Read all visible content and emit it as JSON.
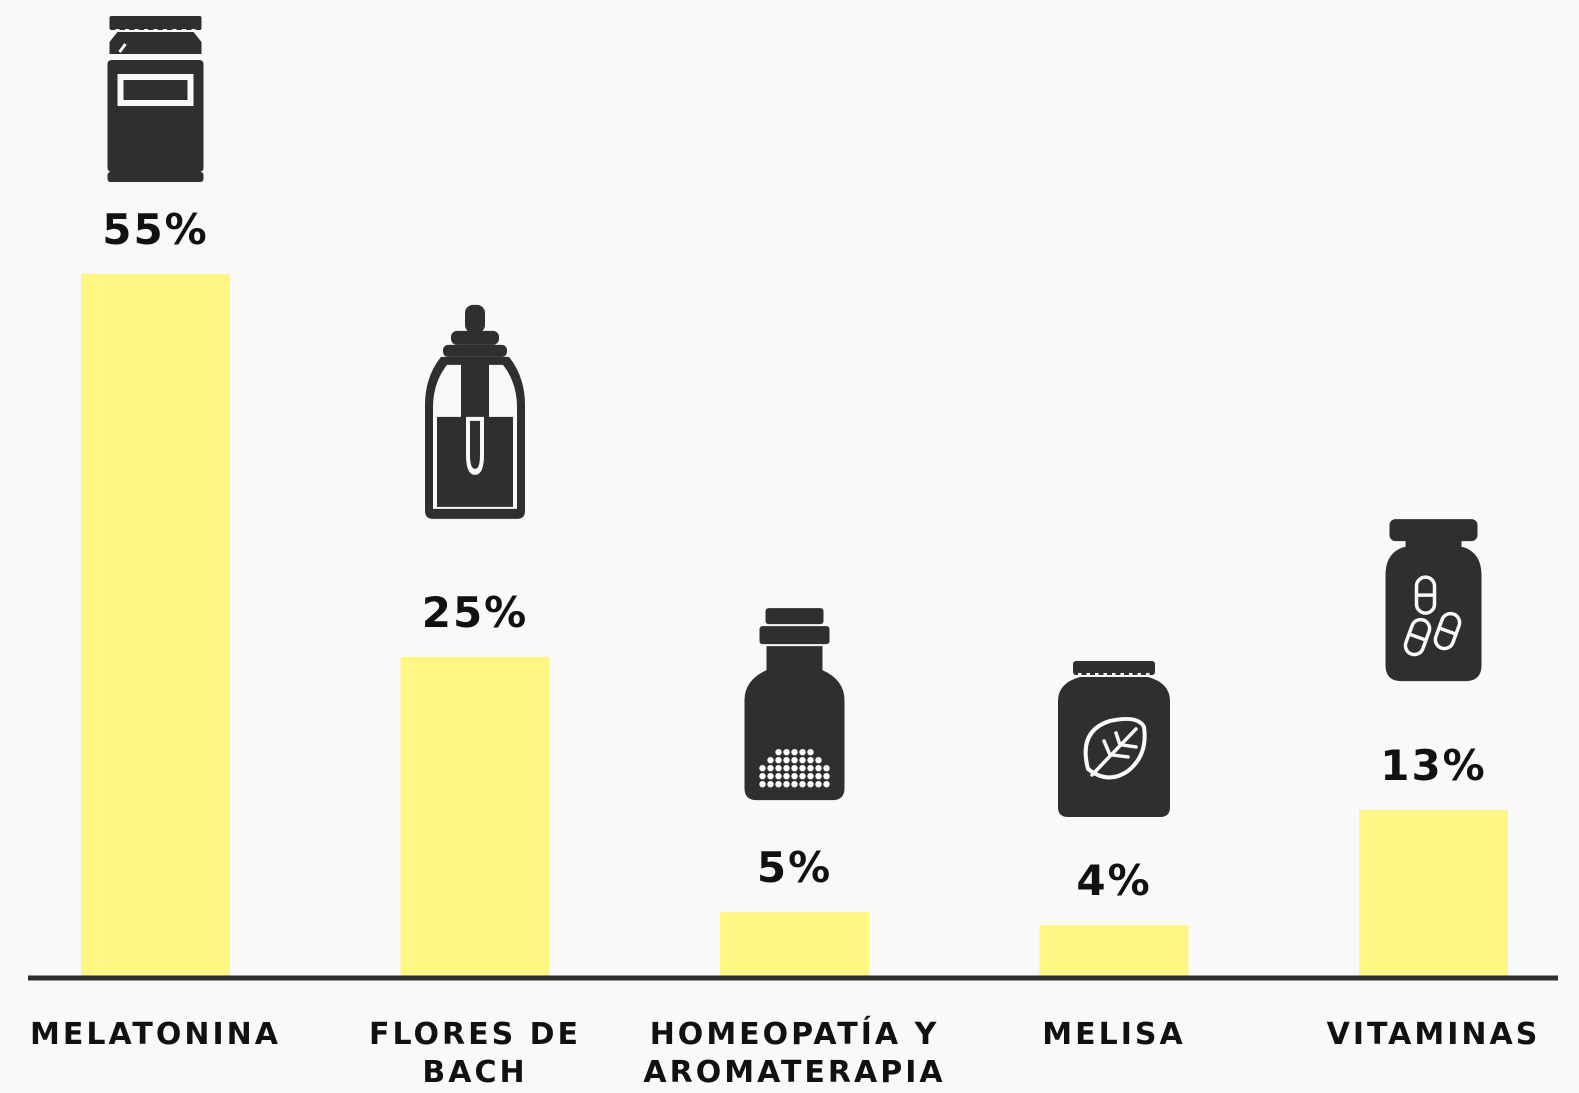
{
  "chart_data": {
    "type": "bar",
    "categories": [
      [
        "MELATONINA"
      ],
      [
        "FLORES DE",
        "BACH"
      ],
      [
        "HOMEOPATÍA Y",
        "AROMATERAPIA"
      ],
      [
        "MELISA"
      ],
      [
        "VITAMINAS"
      ]
    ],
    "values": [
      55,
      25,
      5,
      4,
      13
    ],
    "value_labels": [
      "55%",
      "25%",
      "5%",
      "4%",
      "13%"
    ],
    "icons": [
      "supplement-jar-icon",
      "dropper-bottle-icon",
      "globules-bottle-icon",
      "herb-leaf-jar-icon",
      "capsules-bottle-icon"
    ],
    "ylim": [
      0,
      55
    ],
    "grid": false,
    "colors": {
      "bar": "#fff684",
      "icon": "#2f2f31",
      "axis": "#2f2f31",
      "text": "#111111",
      "background": "#f9f9f9"
    }
  }
}
